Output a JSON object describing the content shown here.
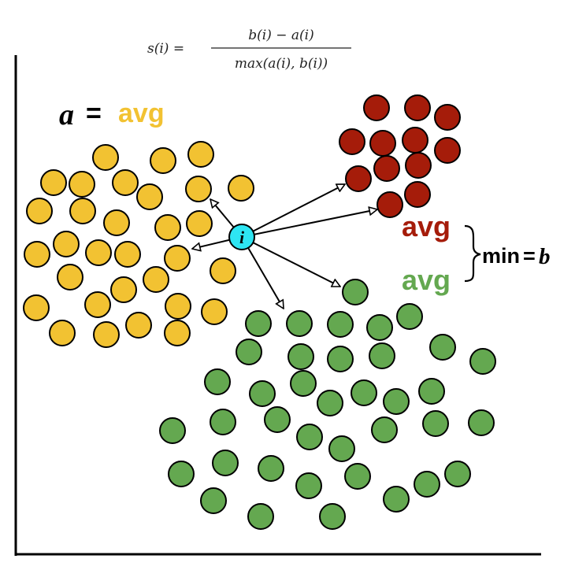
{
  "formula": {
    "lhs": "s(i) =",
    "numerator": "b(i) − a(i)",
    "denominator": "max(a(i), b(i))"
  },
  "a_label": {
    "var": "a",
    "eq": "=",
    "avg": "avg"
  },
  "point_label": "i",
  "red_avg": "avg",
  "green_avg": "avg",
  "min_label": {
    "min": "min",
    "eq": "=",
    "var": "b"
  },
  "colors": {
    "yellow_cluster": "#f2c232",
    "red_cluster": "#a51c0a",
    "green_cluster": "#64a850",
    "point_i": "#2ee5f2",
    "avg_yellow_text": "#f2c232",
    "avg_red_text": "#a51c0a",
    "avg_green_text": "#64a850"
  }
}
